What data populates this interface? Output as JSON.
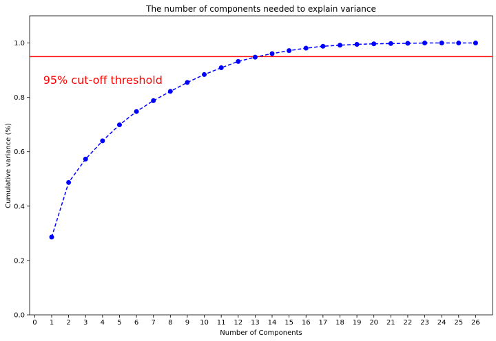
{
  "chart_data": {
    "type": "line",
    "title": "The number of components needed to explain variance",
    "xlabel": "Number of Components",
    "ylabel": "Cumulative variance (%)",
    "x": [
      1,
      2,
      3,
      4,
      5,
      6,
      7,
      8,
      9,
      10,
      11,
      12,
      13,
      14,
      15,
      16,
      17,
      18,
      19,
      20,
      21,
      22,
      23,
      24,
      25,
      26
    ],
    "series": [
      {
        "values": [
          0.286,
          0.487,
          0.573,
          0.64,
          0.699,
          0.748,
          0.788,
          0.822,
          0.855,
          0.884,
          0.909,
          0.932,
          0.948,
          0.961,
          0.972,
          0.981,
          0.988,
          0.992,
          0.995,
          0.997,
          0.998,
          0.999,
          1.0,
          1.0,
          1.0,
          1.0
        ],
        "color": "#0000ff",
        "style": "dashed",
        "marker": "circle"
      }
    ],
    "xlim": [
      -0.3,
      27.0
    ],
    "ylim": [
      0.0,
      1.1
    ],
    "xticks": [
      "0",
      "1",
      "2",
      "3",
      "4",
      "5",
      "6",
      "7",
      "8",
      "9",
      "10",
      "11",
      "12",
      "13",
      "14",
      "15",
      "16",
      "17",
      "18",
      "19",
      "20",
      "21",
      "22",
      "23",
      "24",
      "25",
      "26"
    ],
    "yticks": [
      "0.0",
      "0.2",
      "0.4",
      "0.6",
      "0.8",
      "1.0"
    ],
    "threshold": {
      "value": 0.95,
      "color": "#ff0000"
    },
    "annotation": {
      "text": "95% cut-off threshold",
      "x": 0.5,
      "y": 0.85,
      "color": "#ff0000"
    },
    "grid": false,
    "legend": "none"
  }
}
